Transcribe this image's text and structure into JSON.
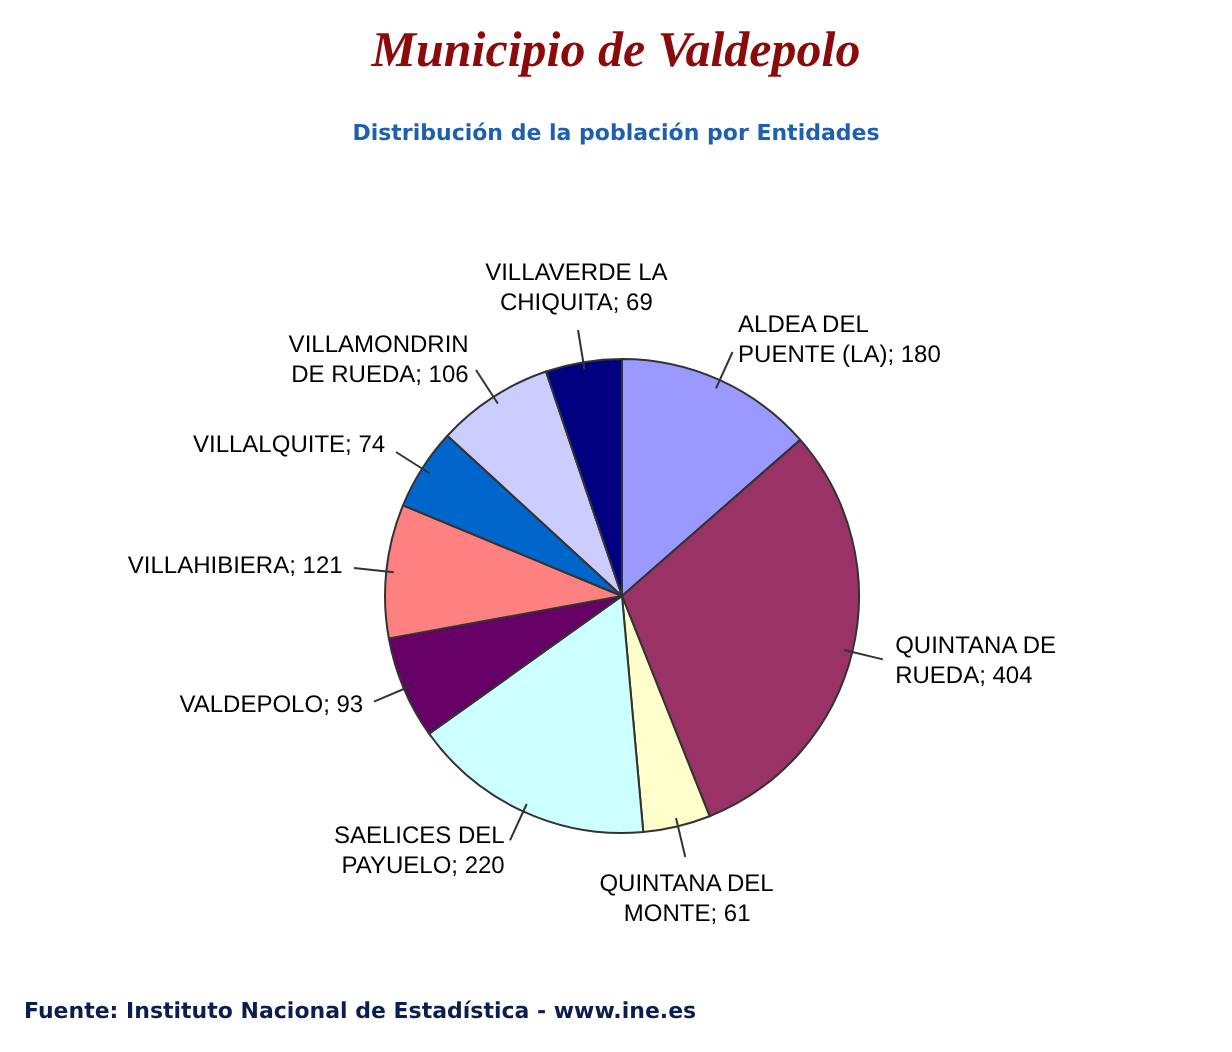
{
  "chart_data": {
    "type": "pie",
    "title": "Municipio de Valdepolo",
    "subtitle": "Distribución de la población por Entidades",
    "categories": [
      "ALDEA DEL PUENTE (LA)",
      "QUINTANA DE RUEDA",
      "QUINTANA DEL MONTE",
      "SAELICES DEL PAYUELO",
      "VALDEPOLO",
      "VILLAHIBIERA",
      "VILLALQUITE",
      "VILLAMONDRIN DE RUEDA",
      "VILLAVERDE LA CHIQUITA"
    ],
    "values": [
      180,
      404,
      61,
      220,
      93,
      121,
      74,
      106,
      69
    ],
    "colors": [
      "#9999ff",
      "#993366",
      "#ffffcc",
      "#ccffff",
      "#660066",
      "#ff8080",
      "#0066cc",
      "#ccccff",
      "#000080"
    ],
    "value_labels": [
      "; 180",
      "; 404",
      "; 61",
      "; 220",
      "; 93",
      "; 121",
      "; 74",
      "; 106",
      "; 69"
    ],
    "annotations": [
      "Fuente: Instituto Nacional de Estadística - www.ine.es"
    ]
  }
}
